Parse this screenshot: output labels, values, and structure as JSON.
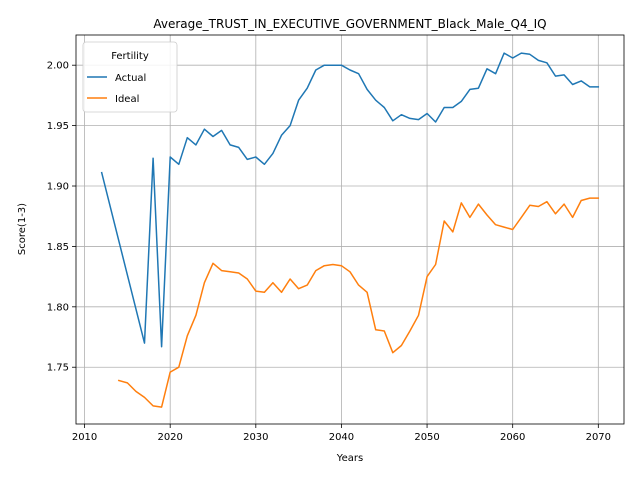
{
  "chart_data": {
    "type": "line",
    "title": "Average_TRUST_IN_EXECUTIVE_GOVERNMENT_Black_Male_Q4_IQ",
    "xlabel": "Years",
    "ylabel": "Score(1-3)",
    "xlim": [
      2009,
      2073
    ],
    "ylim": [
      1.703,
      2.025
    ],
    "xticks": [
      "2010",
      "2020",
      "2030",
      "2040",
      "2050",
      "2060",
      "2070"
    ],
    "yticks": [
      "1.75",
      "1.80",
      "1.85",
      "1.90",
      "1.95",
      "2.00"
    ],
    "grid": true,
    "legend": {
      "title": "Fertility",
      "placement": "top-left"
    },
    "series": [
      {
        "name": "Actual",
        "color": "#1f77b4",
        "x": [
          2012,
          2017,
          2018,
          2019,
          2020,
          2021,
          2022,
          2023,
          2024,
          2025,
          2026,
          2027,
          2028,
          2029,
          2030,
          2031,
          2032,
          2033,
          2034,
          2035,
          2036,
          2037,
          2038,
          2039,
          2040,
          2041,
          2042,
          2043,
          2044,
          2045,
          2046,
          2047,
          2048,
          2049,
          2050,
          2051,
          2052,
          2053,
          2054,
          2055,
          2056,
          2057,
          2058,
          2059,
          2060,
          2061,
          2062,
          2063,
          2064,
          2065,
          2066,
          2067,
          2068,
          2069,
          2070
        ],
        "values": [
          1.911,
          1.77,
          1.923,
          1.767,
          1.924,
          1.918,
          1.94,
          1.934,
          1.947,
          1.941,
          1.946,
          1.934,
          1.932,
          1.922,
          1.924,
          1.918,
          1.927,
          1.942,
          1.95,
          1.971,
          1.981,
          1.996,
          2.0,
          2.0,
          2.0,
          1.996,
          1.993,
          1.98,
          1.971,
          1.965,
          1.954,
          1.959,
          1.956,
          1.955,
          1.96,
          1.953,
          1.965,
          1.965,
          1.97,
          1.98,
          1.981,
          1.997,
          1.993,
          2.01,
          2.006,
          2.01,
          2.009,
          2.004,
          2.002,
          1.991,
          1.992,
          1.984,
          1.987,
          1.982,
          1.982
        ]
      },
      {
        "name": "Ideal",
        "color": "#ff7f0e",
        "x": [
          2014,
          2015,
          2016,
          2017,
          2018,
          2019,
          2020,
          2021,
          2022,
          2023,
          2024,
          2025,
          2026,
          2027,
          2028,
          2029,
          2030,
          2031,
          2032,
          2033,
          2034,
          2035,
          2036,
          2037,
          2038,
          2039,
          2040,
          2041,
          2042,
          2043,
          2044,
          2045,
          2046,
          2047,
          2048,
          2049,
          2050,
          2051,
          2052,
          2053,
          2054,
          2055,
          2056,
          2057,
          2058,
          2059,
          2060,
          2061,
          2062,
          2063,
          2064,
          2065,
          2066,
          2067,
          2068,
          2069,
          2070
        ],
        "values": [
          1.739,
          1.737,
          1.73,
          1.725,
          1.718,
          1.717,
          1.746,
          1.75,
          1.776,
          1.793,
          1.82,
          1.836,
          1.83,
          1.829,
          1.828,
          1.823,
          1.813,
          1.812,
          1.82,
          1.812,
          1.823,
          1.815,
          1.818,
          1.83,
          1.834,
          1.835,
          1.834,
          1.829,
          1.818,
          1.812,
          1.781,
          1.78,
          1.762,
          1.768,
          1.78,
          1.793,
          1.825,
          1.835,
          1.871,
          1.862,
          1.886,
          1.874,
          1.885,
          1.876,
          1.868,
          1.866,
          1.864,
          1.874,
          1.884,
          1.883,
          1.887,
          1.877,
          1.885,
          1.874,
          1.888,
          1.89,
          1.89
        ]
      }
    ]
  }
}
